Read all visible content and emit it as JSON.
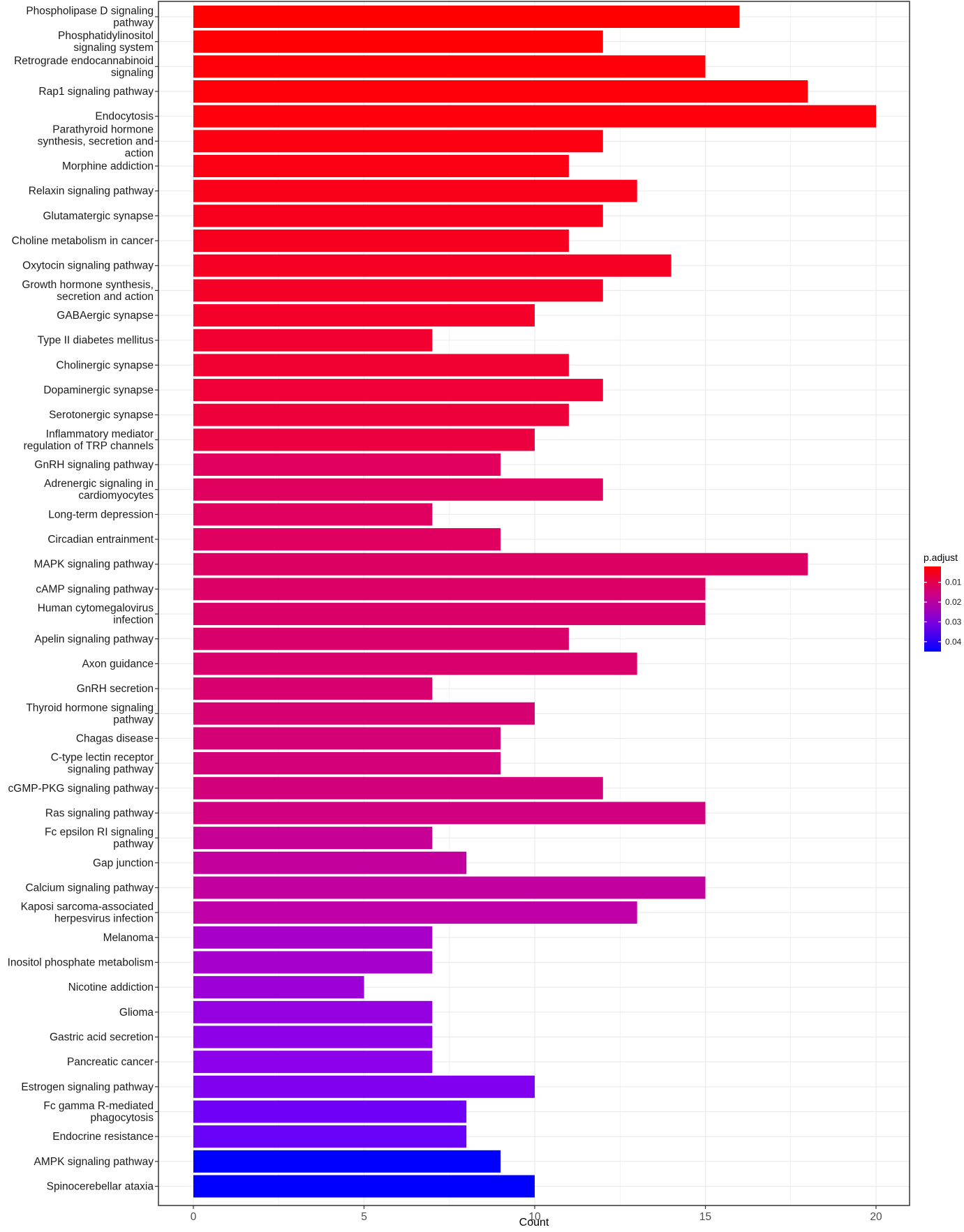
{
  "chart_data": {
    "type": "bar",
    "orientation": "horizontal",
    "title": "",
    "xlabel": "Count",
    "ylabel": "",
    "xlim": [
      0,
      21
    ],
    "x_ticks": [
      0,
      5,
      10,
      15,
      20
    ],
    "grid": true,
    "categories": [
      [
        "Phospholipase D signaling",
        "pathway"
      ],
      [
        "Phosphatidylinositol",
        "signaling system"
      ],
      [
        "Retrograde endocannabinoid",
        "signaling"
      ],
      [
        "Rap1 signaling pathway"
      ],
      [
        "Endocytosis"
      ],
      [
        "Parathyroid hormone",
        "synthesis, secretion and",
        "action"
      ],
      [
        "Morphine addiction"
      ],
      [
        "Relaxin signaling pathway"
      ],
      [
        "Glutamatergic synapse"
      ],
      [
        "Choline metabolism in cancer"
      ],
      [
        "Oxytocin signaling pathway"
      ],
      [
        "Growth hormone synthesis,",
        "secretion and action"
      ],
      [
        "GABAergic synapse"
      ],
      [
        "Type II diabetes mellitus"
      ],
      [
        "Cholinergic synapse"
      ],
      [
        "Dopaminergic synapse"
      ],
      [
        "Serotonergic synapse"
      ],
      [
        "Inflammatory mediator",
        "regulation of TRP channels"
      ],
      [
        "GnRH signaling pathway"
      ],
      [
        "Adrenergic signaling in",
        "cardiomyocytes"
      ],
      [
        "Long-term depression"
      ],
      [
        "Circadian entrainment"
      ],
      [
        "MAPK signaling pathway"
      ],
      [
        "cAMP signaling pathway"
      ],
      [
        "Human cytomegalovirus",
        "infection"
      ],
      [
        "Apelin signaling pathway"
      ],
      [
        "Axon guidance"
      ],
      [
        "GnRH secretion"
      ],
      [
        "Thyroid hormone signaling",
        "pathway"
      ],
      [
        "Chagas disease"
      ],
      [
        "C-type lectin receptor",
        "signaling pathway"
      ],
      [
        "cGMP-PKG signaling pathway"
      ],
      [
        "Ras signaling pathway"
      ],
      [
        "Fc epsilon RI signaling",
        "pathway"
      ],
      [
        "Gap junction"
      ],
      [
        "Calcium signaling pathway"
      ],
      [
        "Kaposi sarcoma-associated",
        "herpesvirus infection"
      ],
      [
        "Melanoma"
      ],
      [
        "Inositol phosphate metabolism"
      ],
      [
        "Nicotine addiction"
      ],
      [
        "Glioma"
      ],
      [
        "Gastric acid secretion"
      ],
      [
        "Pancreatic cancer"
      ],
      [
        "Estrogen signaling pathway"
      ],
      [
        "Fc gamma R-mediated",
        "phagocytosis"
      ],
      [
        "Endocrine resistance"
      ],
      [
        "AMPK signaling pathway"
      ],
      [
        "Spinocerebellar ataxia"
      ]
    ],
    "values": [
      16,
      12,
      15,
      18,
      20,
      12,
      11,
      13,
      12,
      11,
      14,
      12,
      10,
      7,
      11,
      12,
      11,
      10,
      9,
      12,
      7,
      9,
      18,
      15,
      15,
      11,
      13,
      7,
      10,
      9,
      9,
      12,
      15,
      7,
      8,
      15,
      13,
      7,
      7,
      5,
      7,
      7,
      7,
      10,
      8,
      8,
      9,
      10
    ],
    "colors": [
      "#ff0000",
      "#ff0005",
      "#ff0009",
      "#ff000b",
      "#ff000d",
      "#fd0011",
      "#fc0014",
      "#fa0019",
      "#f8001d",
      "#f70020",
      "#f60024",
      "#f50027",
      "#f4002b",
      "#f2002f",
      "#f10032",
      "#f00036",
      "#ee003b",
      "#ec0040",
      "#e1005d",
      "#e0005e",
      "#df005f",
      "#df0060",
      "#dd0063",
      "#dc0066",
      "#db0068",
      "#da006a",
      "#d9006d",
      "#d8006f",
      "#d70072",
      "#d60076",
      "#d40079",
      "#d3007c",
      "#d10080",
      "#c70095",
      "#c3009e",
      "#c200a0",
      "#bf00a8",
      "#a800c8",
      "#a500cc",
      "#9c00d6",
      "#9400e0",
      "#8e00e8",
      "#8c00ea",
      "#8100f0",
      "#7000f5",
      "#6900f8",
      "#0000ff",
      "#0000ff"
    ],
    "legend": {
      "title": "p.adjust",
      "position": "right",
      "range": [
        0.002,
        0.045
      ],
      "ticks": [
        "0.01",
        "0.02",
        "0.03",
        "0.04"
      ],
      "tick_values": [
        0.01,
        0.02,
        0.03,
        0.04
      ],
      "gradient_stops": [
        "#ff0000",
        "#cc0088",
        "#7a00e0",
        "#0000ff"
      ]
    }
  }
}
